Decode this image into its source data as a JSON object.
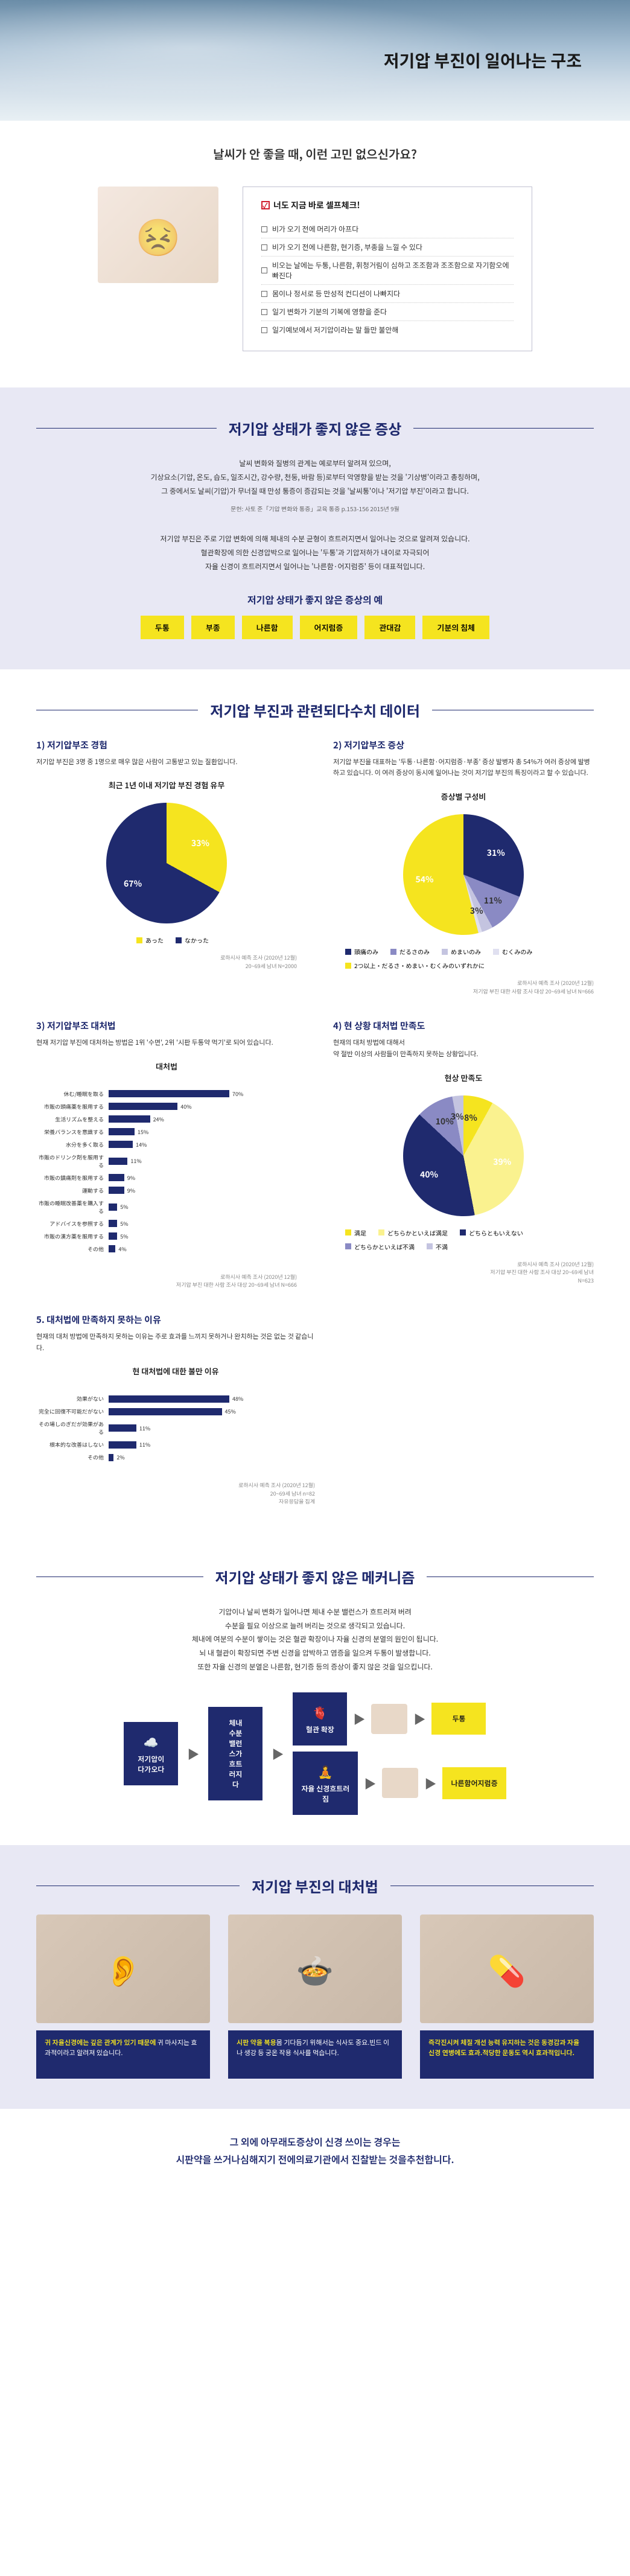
{
  "hero": {
    "title": "저기압 부진이 일어나는 구조"
  },
  "question": {
    "title": "날씨가 안 좋을 때, 이런 고민 없으신가요?",
    "checklistTitle": "너도 지금 바로 셀프체크!",
    "items": [
      "비가 오기 전에 머리가 아프다",
      "비가 오기 전에 나른함, 현기증, 부종을 느낄 수 있다",
      "비오는 날에는 두통, 나른함, 휘청거림이 심하고 조조함과 조조함으로 자기함오에 빠진다",
      "몸이나 정서로 등 만성적 컨디션이 나빠지다",
      "일기 변화가 기분의 기복에 영향을 준다",
      "일기예보에서 저기압이라는 말 들만 불안해"
    ]
  },
  "symptoms": {
    "heading": "저기압 상태가 좋지 않은 증상",
    "text1": "날씨 변화와 질병의 관계는 예로부터 알려져 있으며,",
    "text2": "기상요소(기압, 온도, 습도, 일조시간, 강수량, 천둥, 바람 등)로부터 악영향을 받는 것을 '기상병'이라고 총칭하며,",
    "text3": "그 중에서도 날씨(기압)가 무너질 때 만성 통증이 증감되는 것을 '날씨통'이나 '저기압 부진'이라고 합니다.",
    "src": "문헌: 사토 준「기압 변화와 통증」교육 통증 p.153-156 2015년 9월",
    "text4": "저기압 부진은 주로 기압 변화에 의해 체내의 수분 균형이 흐트러지면서 일어나는 것으로 알려져 있습니다.",
    "text5": "혈관확장에 의한 신경압박으로 일어나는 '두통'과 기압저하가 내이로 자극되어",
    "text6": "자율 신경이 흐트러지면서 일어나는 '나른함·어지럼증' 등이 대표적입니다.",
    "subtitle": "저기압 상태가 좋지 않은 증상의 예",
    "badges": [
      "두통",
      "부종",
      "나른함",
      "어지럼증",
      "관대감",
      "기분의 침체"
    ]
  },
  "data": {
    "heading": "저기압 부진과 관련되다수치 데이터",
    "cards": [
      {
        "title": "1) 저기압부조 경험",
        "desc": "저기압 부진은 3명 중 1명으로 매우 많은 사람이 고통받고 있는 질환입니다.",
        "chartTitle": "최근 1년 이내 저기압 부진 경험 유무",
        "type": "pie2",
        "slices": [
          {
            "label": "あった",
            "value": 33,
            "color": "#f5e41f"
          },
          {
            "label": "なかった",
            "value": 67,
            "color": "#1f2a6e"
          }
        ],
        "src": "로하시사 예측 조사 (2020년 12월)\n20~69세 남녀 N=2000"
      },
      {
        "title": "2) 저기압부조 증상",
        "desc": "저기압 부진을 대표하는 '두통·나른함·어지럼증·부종' 증상 발병자 총 54%가 여러 증상에 발병하고 있습니다. 이 여러 증상이 동시에 일어나는 것이 저기압 부진의 특징이라고 할 수 있습니다.",
        "chartTitle": "증상별 구성비",
        "type": "pie5",
        "slices": [
          {
            "label": "頭痛のみ",
            "value": 31,
            "color": "#1f2a6e"
          },
          {
            "label": "だるさのみ",
            "value": 11,
            "color": "#8a8ac4"
          },
          {
            "label": "めまいのみ",
            "value": 3,
            "color": "#c4c4e0"
          },
          {
            "label": "むくみのみ",
            "value": 1,
            "color": "#e0e0f0"
          },
          {
            "label": "2つ以上・だるさ・めまい・むくみのいずれかに",
            "value": 54,
            "color": "#f5e41f"
          }
        ],
        "src": "로하시사 예측 조사 (2020년 12월)\n저기압 부진 대한 사람 조사 대상 20~69세 남녀 N=666"
      },
      {
        "title": "3) 저기압부조 대처법",
        "desc": "현재 저기압 부진에 대처하는 방법은 1위 '수면', 2위 '시판 두통약 먹기'로 되어 있습니다.",
        "chartTitle": "대처법",
        "type": "bar",
        "bars": [
          {
            "label": "休む/睡眠を取る",
            "value": 70,
            "color": "#1f2a6e"
          },
          {
            "label": "市販の頭痛薬を服用する",
            "value": 40,
            "color": "#1f2a6e"
          },
          {
            "label": "生活リズムを整える",
            "value": 24,
            "color": "#1f2a6e"
          },
          {
            "label": "栄養バランスを意識する",
            "value": 15,
            "color": "#1f2a6e"
          },
          {
            "label": "水分を多く取る",
            "value": 14,
            "color": "#1f2a6e"
          },
          {
            "label": "市販のドリンク剤を服用する",
            "value": 11,
            "color": "#1f2a6e"
          },
          {
            "label": "市販の鎮痛剤を服用する",
            "value": 9,
            "color": "#1f2a6e"
          },
          {
            "label": "運動する",
            "value": 9,
            "color": "#1f2a6e"
          },
          {
            "label": "市販の睡眠改善薬を購入する",
            "value": 5,
            "color": "#1f2a6e"
          },
          {
            "label": "アドバイスを参照する",
            "value": 5,
            "color": "#1f2a6e"
          },
          {
            "label": "市販の漢方薬を服用する",
            "value": 5,
            "color": "#1f2a6e"
          },
          {
            "label": "その他",
            "value": 4,
            "color": "#1f2a6e"
          }
        ],
        "src": "로하시사 예측 조사 (2020년 12월)\n저기압 부진 대한 사람 조사 대상 20~69세 남녀 N=666"
      },
      {
        "title": "4) 현 상황 대처법 만족도",
        "desc": "현재의 대처 방법에 대해서\n약 절반 이상의 사람들이 만족하지 못하는 상황입니다.",
        "chartTitle": "현상 만족도",
        "type": "pie5b",
        "slices": [
          {
            "label": "満足",
            "value": 8,
            "color": "#f5e41f"
          },
          {
            "label": "どちらかといえば満足",
            "value": 39,
            "color": "#faf28f"
          },
          {
            "label": "どちらともいえない",
            "value": 40,
            "color": "#1f2a6e"
          },
          {
            "label": "どちらかといえば不満",
            "value": 10,
            "color": "#8a8ac4"
          },
          {
            "label": "不満",
            "value": 3,
            "color": "#c4c4e0"
          }
        ],
        "src": "로하시사 예측 조사 (2020년 12월)\n저기압 부진 대한 사람 조사 대상 20~69세 남녀\nN=623"
      },
      {
        "title": "5. 대처법에 만족하지 못하는 이유",
        "desc": "현재의 대처 방법에 만족하지 못하는 이유는 주로 효과를 느끼지 못하거나 완치하는 것은 없는 것 같습니다.",
        "chartTitle": "현 대처법에 대한 불만 이유",
        "type": "bar",
        "bars": [
          {
            "label": "効果がない",
            "value": 48,
            "color": "#1f2a6e"
          },
          {
            "label": "完全に回復不可能だがない",
            "value": 45,
            "color": "#1f2a6e"
          },
          {
            "label": "その場しのぎだが効果がある",
            "value": 11,
            "color": "#1f2a6e"
          },
          {
            "label": "根本的な改善はしない",
            "value": 11,
            "color": "#1f2a6e"
          },
          {
            "label": "その他",
            "value": 2,
            "color": "#1f2a6e"
          }
        ],
        "src": "로하시사 예측 조사 (2020년 12월)\n20~69세 남녀 n=82\n자유응답을 집계",
        "fullWidth": true
      }
    ]
  },
  "mechanism": {
    "heading": "저기압 상태가 좋지 않은 메커니즘",
    "text": [
      "기압이나 날씨 변화가 일어나면 체내 수분 밸런스가 흐트러져 버려",
      "수분을 필요 이상으로 늘려 버리는 것으로 생각되고 있습니다.",
      "체내에 여분의 수분이 쌓이는 것은 혈관 확장이나 자율 신경의 분열의 원인이 됩니다.",
      "뇌 내 혈관이 확장되면 주변 신경을 압박하고 염증을 일으켜 두통이 발생합니다.",
      "또한 자율 신경의 분열은 나른함, 현기증 등의 증상이 좋지 않은 것을 일으킵니다."
    ],
    "flow": {
      "start": {
        "label": "저기압이\n다가오다",
        "icon": "☁️"
      },
      "mid": {
        "label": "체내\n수분\n밸런\n스가\n흐트\n러지\n다"
      },
      "top": [
        {
          "label": "혈관 확장",
          "icon": "🫀"
        },
        {
          "label": "두통",
          "color": "#f5e41f"
        }
      ],
      "bottom": [
        {
          "label": "자율 신경흐트러\n짐",
          "icon": "🧘"
        },
        {
          "label": "나른함어지럼증",
          "color": "#f5e41f"
        }
      ]
    }
  },
  "treatment": {
    "heading": "저기압 부진의 대처법",
    "cards": [
      {
        "emoji": "👂",
        "hl": "귀 자율신경에는 깊은 관계가 있기 때문에",
        "text": " 귀 마사지는 효과적이라고 알려져 있습니다."
      },
      {
        "emoji": "🍲",
        "hl": "시판 약을 복용",
        "text": "몸 기다듬기 위해서는 식사도 중요.빈드 이나 생강 등 궁온 작용 식사를 먹습니다."
      },
      {
        "emoji": "💊",
        "hl": "즉각진시켜 체질 개선 능력 유지하는 것은\n동경감과 자율신경 연병에도 효과.적당한 운동도 역시 효과적입니다.",
        "text": ""
      }
    ],
    "footer": "그 외에 아무래도증상이 신경 쓰이는 경우는\n시판약을 쓰거나심해지기 전에의료기관에서 진찰받는 것을추천합니다."
  },
  "colors": {
    "primary": "#1f2a6e",
    "accent": "#f5e41f",
    "band": "#e8e8f4"
  }
}
